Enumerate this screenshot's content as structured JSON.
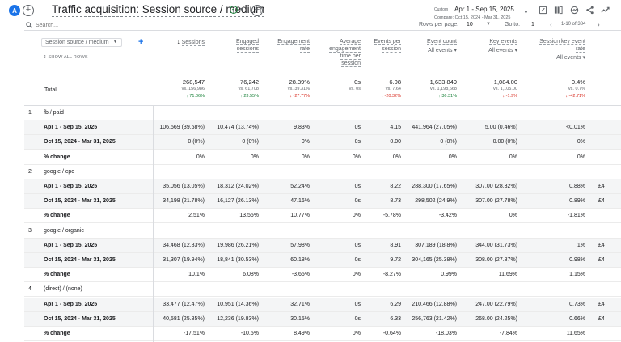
{
  "header": {
    "avatar_letter": "A",
    "add_comparison": "+",
    "title": "Traffic acquisition: Session source / medium",
    "add_label": "+",
    "date_custom": "Custom",
    "date_range": "Apr 1 - Sep 15, 2025",
    "date_compare": "Compare: Oct 15, 2024 - Mar 31, 2025"
  },
  "toolbar": {
    "search_placeholder": "Search...",
    "rows_per_page_label": "Rows per page:",
    "rows_per_page_value": "10",
    "goto_label": "Go to:",
    "goto_value": "1",
    "range_label": "1-10 of 384"
  },
  "dimension": {
    "select_label": "Session source / medium",
    "show_all": "SHOW ALL ROWS",
    "total_label": "Total"
  },
  "columns": [
    {
      "label": "Sessions",
      "sub": ""
    },
    {
      "label": "Engaged sessions",
      "sub": ""
    },
    {
      "label": "Engagement rate",
      "sub": ""
    },
    {
      "label": "Average engagement time per session",
      "sub": ""
    },
    {
      "label": "Events per session",
      "sub": ""
    },
    {
      "label": "Event count",
      "sub": "All events"
    },
    {
      "label": "Key events",
      "sub": "All events"
    },
    {
      "label": "Session key event rate",
      "sub": "All events"
    }
  ],
  "totals": [
    {
      "value": "268,547",
      "compare": "vs. 156,986",
      "change": "↑ 71.06%",
      "dir": "up"
    },
    {
      "value": "76,242",
      "compare": "vs. 61,708",
      "change": "↑ 23.55%",
      "dir": "up"
    },
    {
      "value": "28.39%",
      "compare": "vs. 39.31%",
      "change": "↓ -27.77%",
      "dir": "down"
    },
    {
      "value": "0s",
      "compare": "vs. 0s",
      "change": "",
      "dir": ""
    },
    {
      "value": "6.08",
      "compare": "vs. 7.64",
      "change": "↓ -20.32%",
      "dir": "down"
    },
    {
      "value": "1,633,849",
      "compare": "vs. 1,198,668",
      "change": "↑ 36.31%",
      "dir": "up"
    },
    {
      "value": "1,084.00",
      "compare": "vs. 1,105.00",
      "change": "↓ -1.9%",
      "dir": "down"
    },
    {
      "value": "0.4%",
      "compare": "vs. 0.7%",
      "change": "↓ -42.71%",
      "dir": "down"
    }
  ],
  "groups": [
    {
      "index": "1",
      "name": "fb / paid",
      "rows": [
        {
          "label": "Apr 1 - Sep 15, 2025",
          "cells": [
            "106,569 (39.68%)",
            "10,474 (13.74%)",
            "9.83%",
            "0s",
            "4.15",
            "441,964 (27.05%)",
            "5.00 (0.46%)",
            "<0.01%"
          ]
        },
        {
          "label": "Oct 15, 2024 - Mar 31, 2025",
          "cells": [
            "0 (0%)",
            "0 (0%)",
            "0%",
            "0s",
            "0.00",
            "0 (0%)",
            "0.00 (0%)",
            "0%"
          ]
        },
        {
          "label": "% change",
          "cells": [
            "0%",
            "0%",
            "0%",
            "0%",
            "0%",
            "0%",
            "0%",
            "0%"
          ]
        }
      ]
    },
    {
      "index": "2",
      "name": "google / cpc",
      "rows": [
        {
          "label": "Apr 1 - Sep 15, 2025",
          "cells": [
            "35,056 (13.05%)",
            "18,312 (24.02%)",
            "52.24%",
            "0s",
            "8.22",
            "288,300 (17.65%)",
            "307.00 (28.32%)",
            "0.88%"
          ]
        },
        {
          "label": "Oct 15, 2024 - Mar 31, 2025",
          "cells": [
            "34,198 (21.78%)",
            "16,127 (26.13%)",
            "47.16%",
            "0s",
            "8.73",
            "298,502 (24.9%)",
            "307.00 (27.78%)",
            "0.89%"
          ]
        },
        {
          "label": "% change",
          "cells": [
            "2.51%",
            "13.55%",
            "10.77%",
            "0%",
            "-5.78%",
            "-3.42%",
            "0%",
            "-1.81%"
          ]
        }
      ]
    },
    {
      "index": "3",
      "name": "google / organic",
      "rows": [
        {
          "label": "Apr 1 - Sep 15, 2025",
          "cells": [
            "34,468 (12.83%)",
            "19,986 (26.21%)",
            "57.98%",
            "0s",
            "8.91",
            "307,189 (18.8%)",
            "344.00 (31.73%)",
            "1%"
          ]
        },
        {
          "label": "Oct 15, 2024 - Mar 31, 2025",
          "cells": [
            "31,307 (19.94%)",
            "18,841 (30.53%)",
            "60.18%",
            "0s",
            "9.72",
            "304,165 (25.38%)",
            "308.00 (27.87%)",
            "0.98%"
          ]
        },
        {
          "label": "% change",
          "cells": [
            "10.1%",
            "6.08%",
            "-3.65%",
            "0%",
            "-8.27%",
            "0.99%",
            "11.69%",
            "1.15%"
          ]
        }
      ]
    },
    {
      "index": "4",
      "name": "(direct) / (none)",
      "rows": [
        {
          "label": "Apr 1 - Sep 15, 2025",
          "cells": [
            "33,477 (12.47%)",
            "10,951 (14.36%)",
            "32.71%",
            "0s",
            "6.29",
            "210,466 (12.88%)",
            "247.00 (22.79%)",
            "0.73%"
          ]
        },
        {
          "label": "Oct 15, 2024 - Mar 31, 2025",
          "cells": [
            "40,581 (25.85%)",
            "12,236 (19.83%)",
            "30.15%",
            "0s",
            "6.33",
            "256,763 (21.42%)",
            "268.00 (24.25%)",
            "0.66%"
          ]
        },
        {
          "label": "% change",
          "cells": [
            "-17.51%",
            "-10.5%",
            "8.49%",
            "0%",
            "-0.64%",
            "-18.03%",
            "-7.84%",
            "11.65%"
          ]
        }
      ]
    }
  ],
  "overflow_cells": [
    "£4",
    "£4",
    "£4",
    "£4",
    "£4",
    "£4"
  ]
}
